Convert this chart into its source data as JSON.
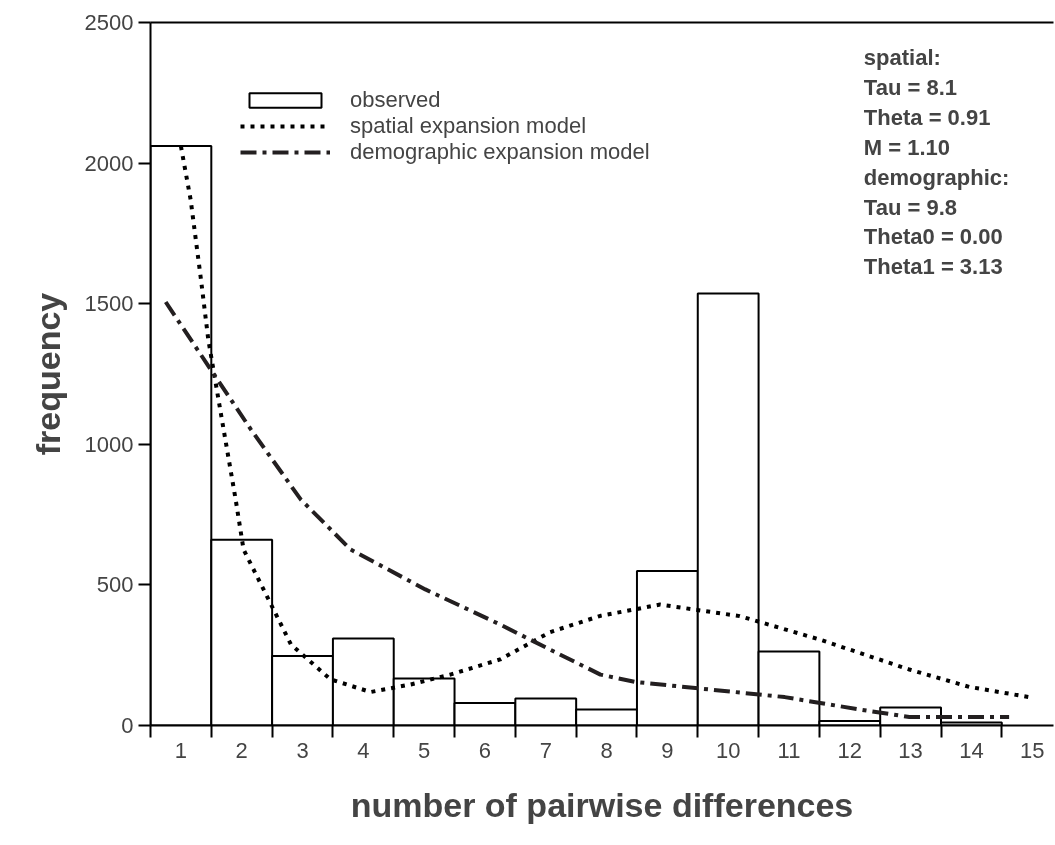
{
  "chart_data": {
    "type": "bar",
    "xlabel": "number of pairwise differences",
    "ylabel": "frequency",
    "x": [
      1,
      2,
      3,
      4,
      5,
      6,
      7,
      8,
      9,
      10,
      11,
      12,
      13,
      14
    ],
    "xlim": [
      0.5,
      15.35
    ],
    "xticks": [
      1,
      2,
      3,
      4,
      5,
      6,
      7,
      8,
      9,
      10,
      11,
      12,
      13,
      14,
      15
    ],
    "ylim": [
      0,
      2500
    ],
    "yticks": [
      0,
      500,
      1000,
      1500,
      2000,
      2500
    ],
    "grid": false,
    "legend": "top left",
    "series": [
      {
        "name": "observed",
        "color": "#ffffff",
        "values": [
          2061,
          661,
          247,
          309,
          167,
          80,
          96,
          57,
          549,
          1536,
          263,
          16,
          64,
          11
        ]
      },
      {
        "name": "spatial expansion model",
        "type": "line",
        "line_style": "dotted",
        "color": "#000000",
        "x": [
          1.0,
          1.16,
          1.33,
          1.45,
          1.66,
          1.9,
          2.03,
          2.4,
          2.81,
          3.46,
          4.12,
          4.78,
          5.43,
          6.25,
          7.07,
          7.9,
          8.88,
          10.19,
          11.5,
          12.98,
          13.97,
          14.95
        ],
        "values": [
          2060,
          1870,
          1586,
          1373,
          1106,
          804,
          626,
          466,
          288,
          164,
          119,
          146,
          181,
          235,
          332,
          390,
          430,
          389,
          306,
          199,
          137,
          101
        ]
      },
      {
        "name": "demographic expansion model",
        "type": "line",
        "line_style": "dashed",
        "color": "#231f20",
        "x": [
          0.75,
          1.49,
          2.15,
          2.97,
          3.79,
          5.02,
          6.25,
          7.07,
          7.9,
          8.47,
          9.7,
          10.93,
          12.16,
          12.98,
          14.62
        ],
        "values": [
          1506,
          1266,
          1053,
          804,
          626,
          484,
          359,
          270,
          181,
          155,
          128,
          101,
          57,
          30,
          30
        ]
      }
    ],
    "annotations": [
      "spatial:",
      "Tau =  8.1",
      "Theta = 0.91",
      "M = 1.10",
      "demographic:",
      "Tau =  9.8",
      "Theta0 = 0.00",
      "Theta1 = 3.13"
    ]
  }
}
